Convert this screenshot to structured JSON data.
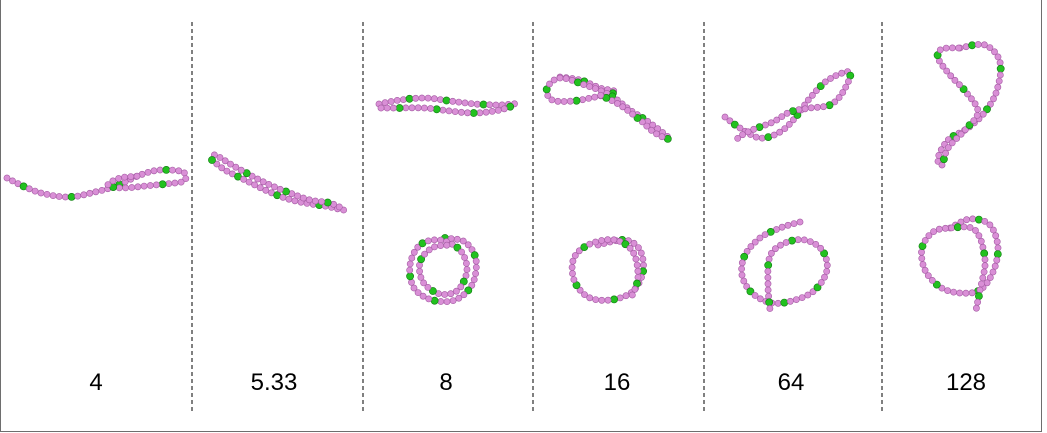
{
  "figure": {
    "panels": [
      {
        "label": "4"
      },
      {
        "label": "5.33"
      },
      {
        "label": "8"
      },
      {
        "label": "16"
      },
      {
        "label": "64"
      },
      {
        "label": "128"
      }
    ]
  },
  "colors": {
    "bead": "#d98fd6",
    "bead_stroke": "#a45aa3",
    "marker": "#22c11f",
    "marker_stroke": "#0f7a10",
    "divider": "#000000"
  }
}
